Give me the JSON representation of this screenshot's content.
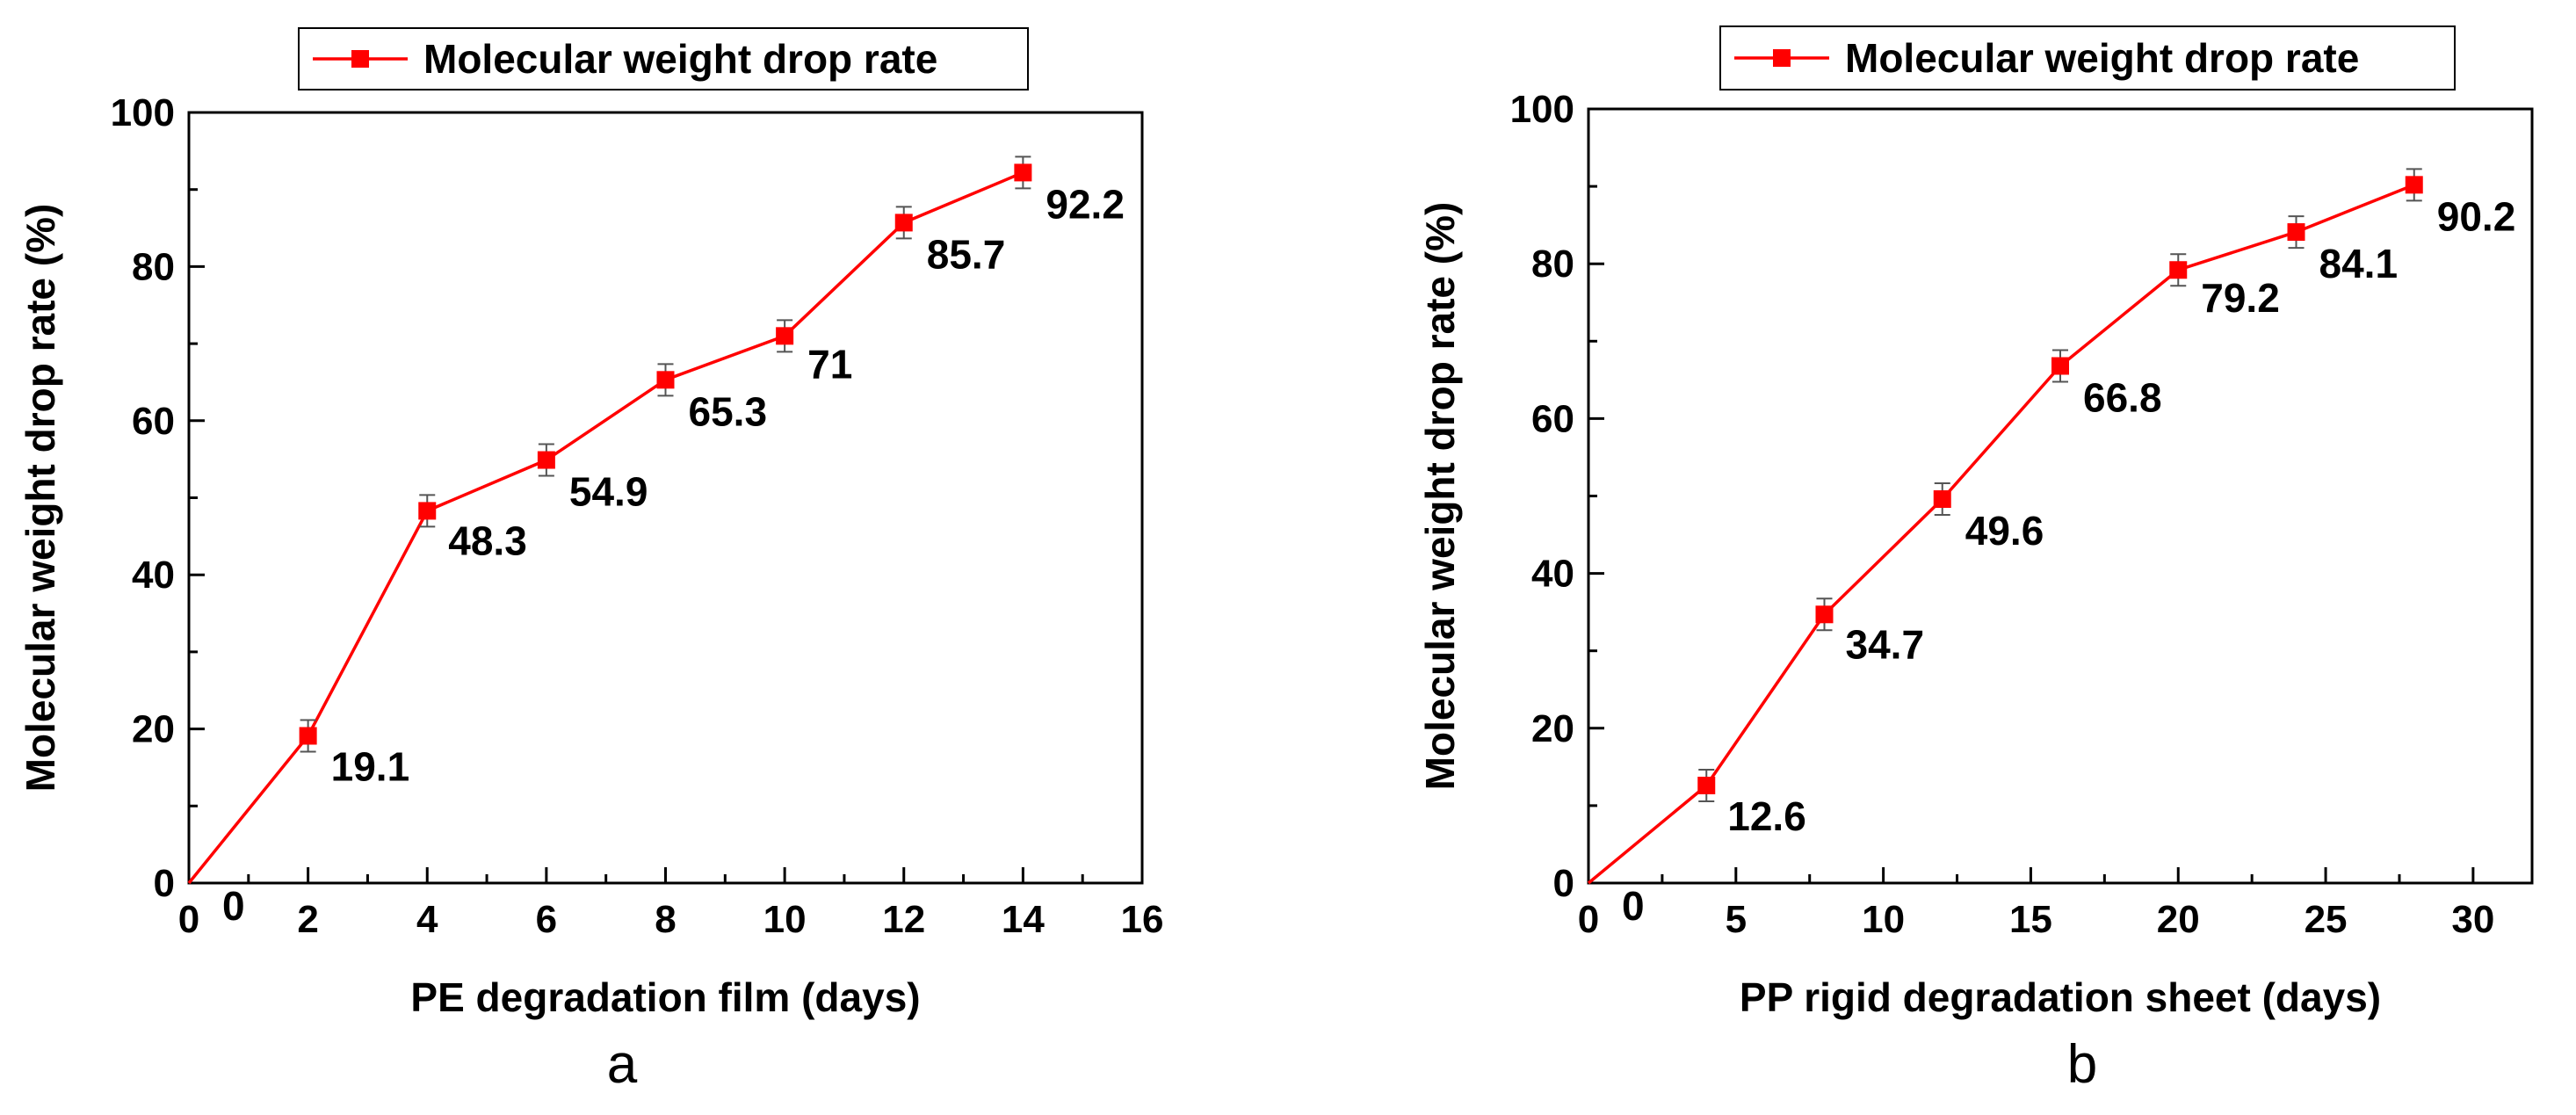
{
  "chart_data": [
    {
      "type": "line",
      "panel_label": "a",
      "xlabel": "PE degradation film (days)",
      "ylabel": "Molecular weight drop rate (%)",
      "xlim": [
        0,
        16
      ],
      "ylim": [
        0,
        100
      ],
      "xticks": [
        0,
        2,
        4,
        6,
        8,
        10,
        12,
        14,
        16
      ],
      "yticks": [
        0,
        20,
        40,
        60,
        80,
        100
      ],
      "grid": false,
      "legend_position": "top",
      "series": [
        {
          "name": "Molecular weight drop rate",
          "color": "#ff0000",
          "marker": "square",
          "x": [
            0,
            2,
            4,
            6,
            8,
            10,
            12,
            14
          ],
          "y": [
            0,
            19.1,
            48.3,
            54.9,
            65.3,
            71,
            85.7,
            92.2
          ],
          "labels": [
            "0",
            "19.1",
            "48.3",
            "54.9",
            "65.3",
            "71",
            "85.7",
            "92.2"
          ]
        }
      ]
    },
    {
      "type": "line",
      "panel_label": "b",
      "xlabel": "PP rigid degradation sheet (days)",
      "ylabel": "Molecular weight drop rate (%)",
      "xlim": [
        0,
        32
      ],
      "ylim": [
        0,
        100
      ],
      "xticks": [
        0,
        5,
        10,
        15,
        20,
        25,
        30
      ],
      "yticks": [
        0,
        20,
        40,
        60,
        80,
        100
      ],
      "grid": false,
      "legend_position": "top",
      "series": [
        {
          "name": "Molecular weight drop rate",
          "color": "#ff0000",
          "marker": "square",
          "x": [
            0,
            4,
            8,
            12,
            16,
            20,
            24,
            28
          ],
          "y": [
            0,
            12.6,
            34.7,
            49.6,
            66.8,
            79.2,
            84.1,
            90.2
          ],
          "labels": [
            "0",
            "12.6",
            "34.7",
            "49.6",
            "66.8",
            "79.2",
            "84.1",
            "90.2"
          ]
        }
      ]
    }
  ]
}
